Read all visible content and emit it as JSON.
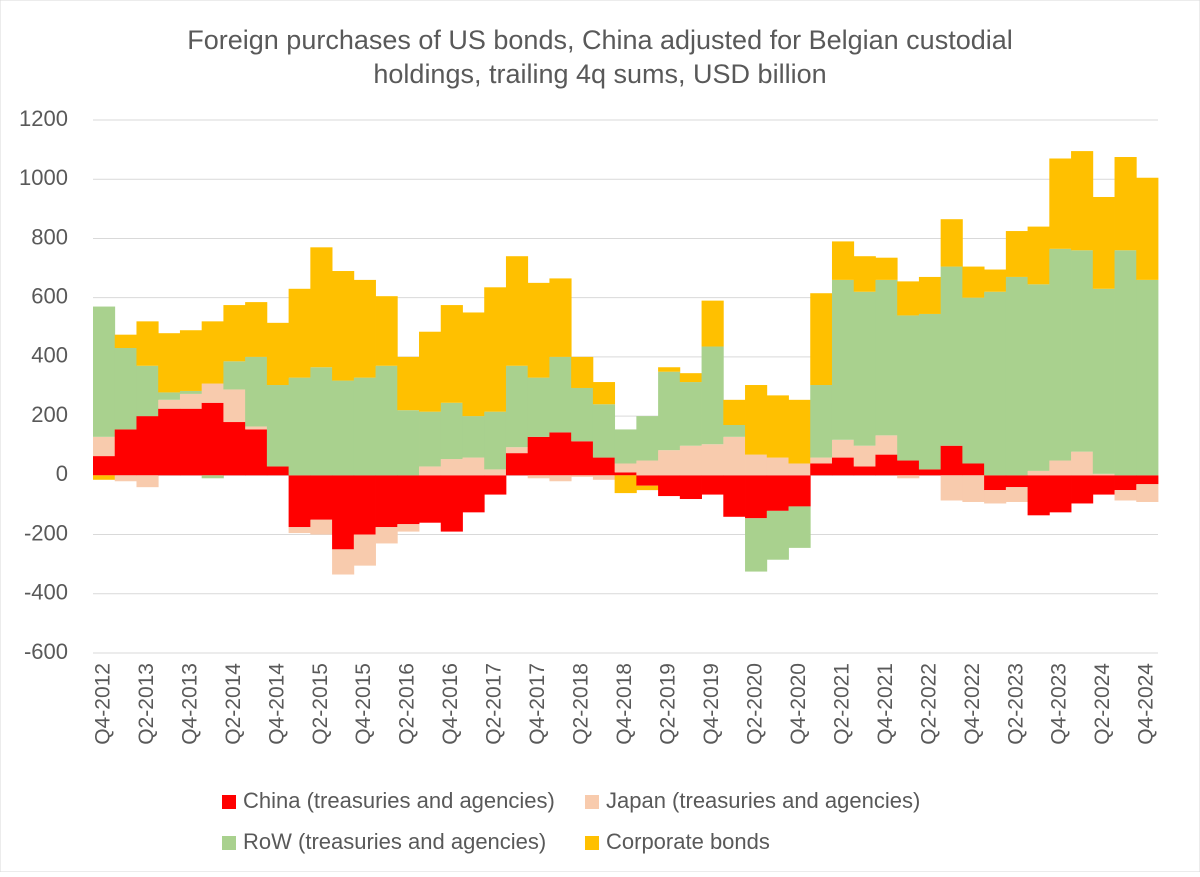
{
  "chart_data": {
    "type": "stacked_bar",
    "title": [
      "Foreign purchases of US bonds,  China adjusted for Belgian custodial",
      "holdings, trailing 4q sums, USD billion"
    ],
    "categories": [
      "Q4-2012",
      null,
      "Q2-2013",
      null,
      "Q4-2013",
      null,
      "Q2-2014",
      null,
      "Q4-2014",
      null,
      "Q2-2015",
      null,
      "Q4-2015",
      null,
      "Q2-2016",
      null,
      "Q4-2016",
      null,
      "Q2-2017",
      null,
      "Q4-2017",
      null,
      "Q2-2018",
      null,
      "Q4-2018",
      null,
      "Q2-2019",
      null,
      "Q4-2019",
      null,
      "Q2-2020",
      null,
      "Q4-2020",
      null,
      "Q2-2021",
      null,
      "Q4-2021",
      null,
      "Q2-2022",
      null,
      "Q4-2022",
      null,
      "Q2-2023",
      null,
      "Q4-2023",
      null,
      "Q2-2024",
      null,
      "Q4-2024"
    ],
    "series": [
      {
        "name": "China (treasuries and agencies)",
        "color": "#ff0000",
        "values": [
          65,
          155,
          200,
          225,
          225,
          245,
          180,
          155,
          30,
          -175,
          -150,
          -250,
          -200,
          -175,
          -165,
          -160,
          -190,
          -125,
          -65,
          75,
          130,
          145,
          115,
          60,
          10,
          -35,
          -70,
          -80,
          -65,
          -140,
          -145,
          -120,
          -105,
          40,
          60,
          30,
          70,
          50,
          20,
          100,
          40,
          -50,
          -40,
          -135,
          -125,
          -95,
          -65,
          -50,
          -30
        ]
      },
      {
        "name": "Japan (treasuries and agencies)",
        "color": "#f8cbad",
        "values": [
          65,
          -20,
          -40,
          30,
          50,
          65,
          110,
          10,
          0,
          -20,
          -50,
          -85,
          -105,
          -55,
          -25,
          30,
          55,
          60,
          20,
          20,
          -10,
          -20,
          -5,
          -15,
          30,
          50,
          85,
          100,
          105,
          130,
          70,
          60,
          40,
          20,
          60,
          70,
          65,
          -10,
          0,
          -85,
          -90,
          -45,
          -50,
          15,
          50,
          80,
          5,
          -35,
          -60
        ]
      },
      {
        "name": "RoW (treasuries and agencies)",
        "color": "#a9d18e",
        "values": [
          440,
          275,
          170,
          25,
          10,
          -10,
          95,
          235,
          275,
          330,
          365,
          320,
          330,
          370,
          220,
          185,
          190,
          140,
          195,
          275,
          200,
          255,
          180,
          180,
          115,
          150,
          265,
          215,
          330,
          40,
          -180,
          -165,
          -140,
          245,
          540,
          520,
          525,
          490,
          525,
          605,
          560,
          620,
          670,
          630,
          715,
          680,
          625,
          760,
          660
        ]
      },
      {
        "name": "Corporate bonds",
        "color": "#ffc000",
        "values": [
          -15,
          45,
          150,
          200,
          205,
          210,
          190,
          185,
          210,
          300,
          405,
          370,
          330,
          235,
          180,
          270,
          330,
          350,
          420,
          370,
          320,
          265,
          105,
          75,
          -60,
          -15,
          15,
          30,
          155,
          85,
          235,
          210,
          215,
          310,
          130,
          120,
          75,
          115,
          125,
          160,
          105,
          75,
          155,
          195,
          305,
          335,
          310,
          315,
          345
        ]
      }
    ],
    "ylim": [
      -600,
      1200
    ],
    "yticks": [
      -600,
      -400,
      -200,
      0,
      200,
      400,
      600,
      800,
      1000,
      1200
    ],
    "grid": true
  }
}
